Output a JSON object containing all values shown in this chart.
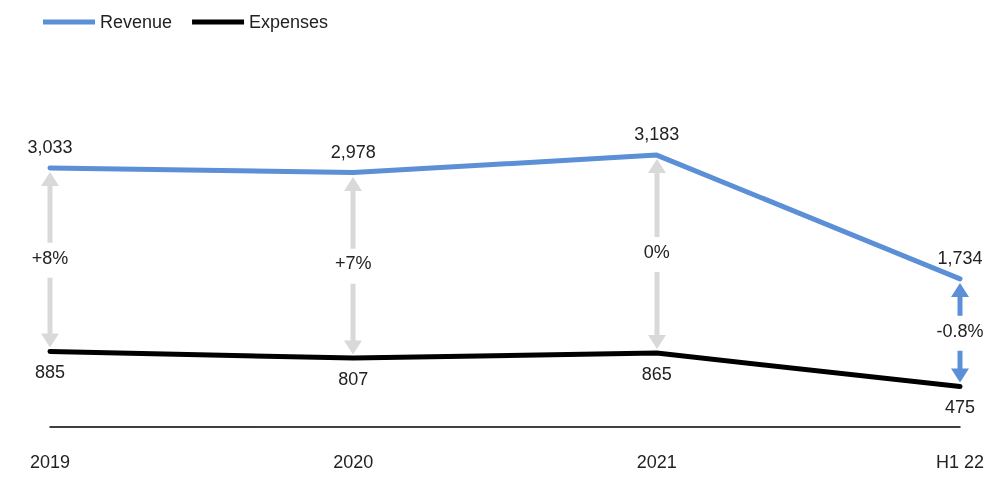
{
  "chart_data": {
    "type": "line",
    "categories": [
      "2019",
      "2020",
      "2021",
      "H1 22"
    ],
    "series": [
      {
        "name": "Revenue",
        "color": "#5b8fd6",
        "values": [
          3033,
          2978,
          3183,
          1734
        ],
        "value_labels": [
          "3,033",
          "2,978",
          "3,183",
          "1,734"
        ]
      },
      {
        "name": "Expenses",
        "color": "#000000",
        "values": [
          885,
          807,
          865,
          475
        ]
      }
    ],
    "data_labels": true,
    "annotations": [
      "+8%",
      "+7%",
      "0%",
      "-0.8%"
    ],
    "legend": "top left",
    "marker": "none",
    "line_style": "solid",
    "grid": false,
    "tick_labels": "x"
  }
}
